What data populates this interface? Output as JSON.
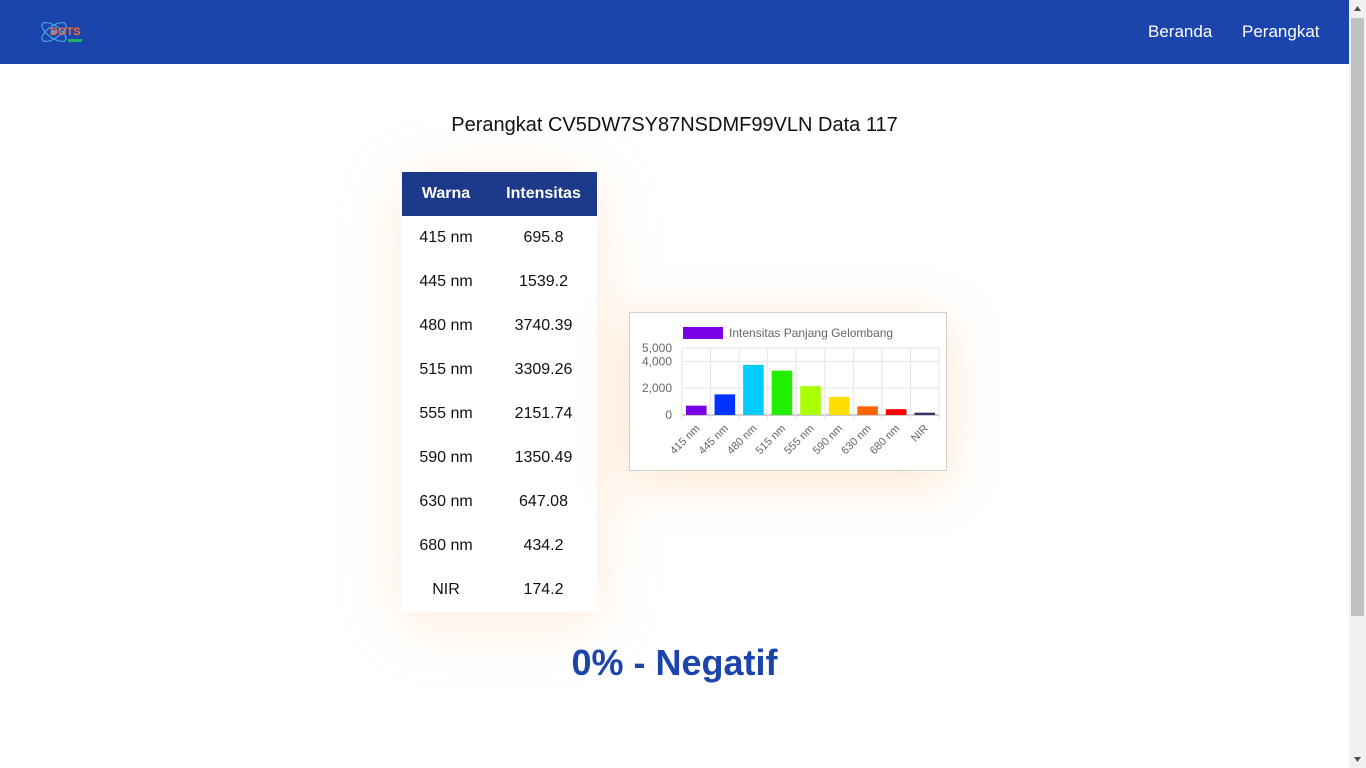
{
  "navbar": {
    "logo_text": "DOTS",
    "links": [
      "Beranda",
      "Perangkat"
    ]
  },
  "page": {
    "title": "Perangkat CV5DW7SY87NSDMF99VLN Data 117",
    "result": "0% - Negatif"
  },
  "table": {
    "headers": [
      "Warna",
      "Intensitas"
    ],
    "rows": [
      [
        "415 nm",
        "695.8"
      ],
      [
        "445 nm",
        "1539.2"
      ],
      [
        "480 nm",
        "3740.39"
      ],
      [
        "515 nm",
        "3309.26"
      ],
      [
        "555 nm",
        "2151.74"
      ],
      [
        "590 nm",
        "1350.49"
      ],
      [
        "630 nm",
        "647.08"
      ],
      [
        "680 nm",
        "434.2"
      ],
      [
        "NIR",
        "174.2"
      ]
    ]
  },
  "chart_data": {
    "type": "bar",
    "categories": [
      "415 nm",
      "445 nm",
      "480 nm",
      "515 nm",
      "555 nm",
      "590 nm",
      "630 nm",
      "680 nm",
      "NIR"
    ],
    "series": [
      {
        "name": "Intensitas Panjang Gelombang",
        "values": [
          695.8,
          1539.2,
          3740.39,
          3309.26,
          2151.74,
          1350.49,
          647.08,
          434.2,
          174.2
        ],
        "colors": [
          "#7a00e6",
          "#0033ff",
          "#00ccff",
          "#22ee00",
          "#aaff00",
          "#ffdd00",
          "#ff6600",
          "#ff0000",
          "#333366"
        ]
      }
    ],
    "yticks": [
      "5,000",
      "4,000",
      "2,000",
      "0"
    ],
    "ylim": [
      0,
      5000
    ],
    "legend_position": "top",
    "legend_color": "#7a00e6",
    "grid": true
  },
  "colors": {
    "navbar": "#1b45ad",
    "table_header": "#1d3a8a",
    "result": "#1b45ad"
  }
}
